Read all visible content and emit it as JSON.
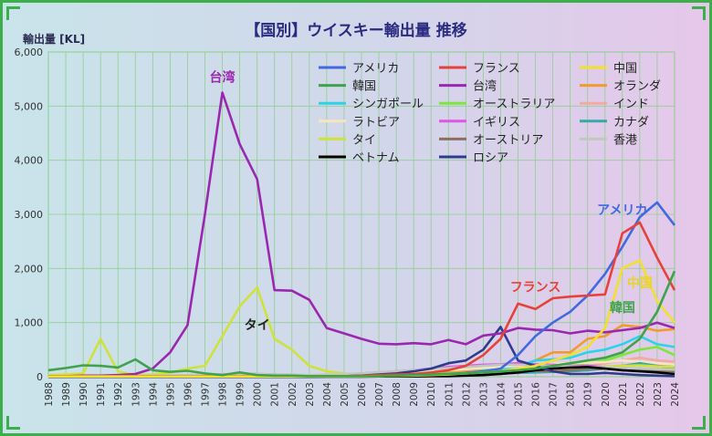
{
  "chart_data": {
    "type": "line",
    "title": "【国別】ウイスキー輸出量 推移",
    "ylabel": "輸出量 [KL]",
    "xlabel": "",
    "ylim": [
      0,
      6000
    ],
    "yticks": [
      0,
      1000,
      2000,
      3000,
      4000,
      5000,
      6000
    ],
    "ytick_labels": [
      "0",
      "1,000",
      "2,000",
      "3,000",
      "4,000",
      "5,000",
      "6,000"
    ],
    "grid": true,
    "legend_position": "top-right",
    "x": [
      "1988",
      "1989",
      "1990",
      "1991",
      "1992",
      "1993",
      "1994",
      "1995",
      "1996",
      "1997",
      "1998",
      "1999",
      "2000",
      "2001",
      "2002",
      "2003",
      "2004",
      "2005",
      "2006",
      "2007",
      "2008",
      "2009",
      "2010",
      "2011",
      "2012",
      "2013",
      "2014",
      "2015",
      "2016",
      "2017",
      "2018",
      "2019",
      "2020",
      "2021",
      "2022",
      "2023",
      "2024"
    ],
    "series": [
      {
        "name": "アメリカ",
        "color": "#4169e1",
        "values": [
          10,
          10,
          10,
          10,
          10,
          10,
          10,
          10,
          10,
          10,
          10,
          10,
          10,
          10,
          10,
          10,
          10,
          10,
          15,
          20,
          25,
          30,
          40,
          50,
          70,
          100,
          150,
          400,
          750,
          1000,
          1200,
          1500,
          1900,
          2400,
          2950,
          3220,
          2800
        ]
      },
      {
        "name": "フランス",
        "color": "#e8403a",
        "values": [
          10,
          10,
          10,
          10,
          10,
          10,
          10,
          10,
          10,
          10,
          10,
          10,
          10,
          10,
          10,
          10,
          10,
          10,
          20,
          30,
          40,
          50,
          80,
          120,
          200,
          400,
          700,
          1350,
          1250,
          1450,
          1480,
          1500,
          1520,
          2650,
          2850,
          2200,
          1600
        ]
      },
      {
        "name": "中国",
        "color": "#f2e02e",
        "values": [
          5,
          5,
          5,
          5,
          5,
          5,
          5,
          5,
          5,
          5,
          5,
          5,
          5,
          5,
          5,
          5,
          5,
          5,
          5,
          10,
          15,
          20,
          30,
          40,
          60,
          80,
          100,
          150,
          200,
          300,
          400,
          550,
          900,
          2000,
          2150,
          1400,
          1000
        ]
      },
      {
        "name": "韓国",
        "color": "#3fa34d",
        "values": [
          120,
          160,
          210,
          200,
          170,
          320,
          120,
          90,
          110,
          60,
          30,
          80,
          30,
          20,
          20,
          10,
          10,
          10,
          10,
          10,
          20,
          30,
          40,
          50,
          60,
          80,
          100,
          120,
          150,
          200,
          250,
          300,
          350,
          450,
          700,
          1200,
          1950
        ]
      },
      {
        "name": "台湾",
        "color": "#9b27b0",
        "values": [
          10,
          10,
          20,
          20,
          30,
          50,
          150,
          450,
          950,
          3000,
          5250,
          4300,
          3650,
          1600,
          1590,
          1420,
          900,
          800,
          700,
          610,
          600,
          620,
          600,
          680,
          600,
          760,
          800,
          900,
          870,
          860,
          800,
          850,
          820,
          860,
          900,
          1000,
          900
        ]
      },
      {
        "name": "オランダ",
        "color": "#f29a2e",
        "values": [
          5,
          5,
          5,
          5,
          5,
          5,
          5,
          5,
          5,
          5,
          5,
          5,
          5,
          5,
          5,
          10,
          20,
          30,
          40,
          50,
          60,
          70,
          80,
          90,
          100,
          120,
          150,
          200,
          300,
          450,
          450,
          700,
          750,
          950,
          920,
          850,
          880
        ]
      },
      {
        "name": "シンガポール",
        "color": "#2ad4e8",
        "values": [
          5,
          5,
          5,
          5,
          5,
          5,
          5,
          5,
          5,
          5,
          5,
          5,
          5,
          5,
          5,
          10,
          20,
          30,
          40,
          50,
          60,
          80,
          100,
          120,
          150,
          150,
          150,
          200,
          300,
          320,
          350,
          450,
          500,
          600,
          750,
          600,
          550
        ]
      },
      {
        "name": "オーストラリア",
        "color": "#7de83c",
        "values": [
          5,
          5,
          5,
          5,
          5,
          5,
          5,
          5,
          5,
          5,
          5,
          5,
          5,
          5,
          5,
          5,
          10,
          10,
          20,
          20,
          30,
          40,
          50,
          60,
          70,
          80,
          80,
          100,
          120,
          150,
          200,
          250,
          300,
          400,
          500,
          550,
          400
        ]
      },
      {
        "name": "インド",
        "color": "#f2a9a0",
        "values": [
          2,
          2,
          2,
          2,
          2,
          2,
          2,
          2,
          2,
          2,
          2,
          2,
          2,
          2,
          2,
          2,
          5,
          5,
          5,
          10,
          10,
          15,
          20,
          30,
          40,
          50,
          60,
          80,
          100,
          120,
          150,
          200,
          250,
          300,
          350,
          300,
          280
        ]
      },
      {
        "name": "ラトビア",
        "color": "#f5e6c0",
        "values": [
          2,
          2,
          2,
          2,
          2,
          2,
          2,
          2,
          2,
          2,
          2,
          2,
          2,
          2,
          2,
          2,
          5,
          10,
          20,
          40,
          60,
          80,
          100,
          120,
          140,
          160,
          180,
          200,
          220,
          240,
          250,
          260,
          270,
          300,
          280,
          250,
          220
        ]
      },
      {
        "name": "イギリス",
        "color": "#e055e8",
        "values": [
          10,
          10,
          10,
          10,
          10,
          10,
          10,
          10,
          20,
          30,
          40,
          50,
          50,
          40,
          30,
          20,
          30,
          40,
          60,
          80,
          100,
          120,
          150,
          180,
          200,
          220,
          230,
          250,
          230,
          220,
          200,
          200,
          180,
          200,
          220,
          200,
          180
        ]
      },
      {
        "name": "カナダ",
        "color": "#3aa8a8",
        "values": [
          2,
          2,
          2,
          2,
          2,
          2,
          2,
          2,
          2,
          2,
          2,
          2,
          2,
          2,
          2,
          2,
          5,
          5,
          10,
          10,
          15,
          20,
          25,
          30,
          40,
          50,
          60,
          70,
          80,
          90,
          100,
          120,
          150,
          200,
          250,
          200,
          150
        ]
      },
      {
        "name": "タイ",
        "color": "#cfe23a",
        "values": [
          30,
          40,
          60,
          700,
          100,
          30,
          40,
          80,
          150,
          200,
          750,
          1300,
          1650,
          700,
          500,
          200,
          100,
          60,
          40,
          30,
          30,
          30,
          40,
          50,
          60,
          80,
          100,
          120,
          130,
          150,
          160,
          170,
          180,
          200,
          210,
          190,
          180
        ]
      },
      {
        "name": "オーストリア",
        "color": "#8a7060",
        "values": [
          2,
          2,
          2,
          2,
          2,
          2,
          2,
          2,
          2,
          2,
          2,
          2,
          2,
          2,
          2,
          2,
          5,
          5,
          5,
          10,
          10,
          10,
          15,
          20,
          30,
          50,
          100,
          120,
          110,
          100,
          120,
          150,
          150,
          130,
          120,
          110,
          100
        ]
      },
      {
        "name": "香港",
        "color": "#c0c8c0",
        "values": [
          5,
          5,
          10,
          10,
          10,
          20,
          20,
          30,
          30,
          40,
          40,
          50,
          50,
          40,
          40,
          30,
          40,
          50,
          60,
          80,
          100,
          120,
          140,
          160,
          180,
          200,
          220,
          220,
          210,
          200,
          190,
          180,
          170,
          160,
          150,
          140,
          130
        ]
      },
      {
        "name": "ベトナム",
        "color": "#000000",
        "values": [
          2,
          2,
          2,
          2,
          2,
          2,
          2,
          2,
          2,
          2,
          2,
          2,
          2,
          2,
          2,
          2,
          2,
          2,
          2,
          5,
          5,
          5,
          10,
          10,
          20,
          30,
          50,
          80,
          120,
          150,
          170,
          180,
          150,
          120,
          100,
          80,
          50
        ]
      },
      {
        "name": "ロシア",
        "color": "#2e3c8c",
        "values": [
          2,
          2,
          2,
          2,
          2,
          2,
          2,
          2,
          2,
          2,
          2,
          2,
          2,
          2,
          2,
          2,
          5,
          10,
          20,
          40,
          60,
          100,
          150,
          250,
          300,
          500,
          920,
          300,
          200,
          100,
          50,
          50,
          70,
          50,
          30,
          20,
          10
        ]
      }
    ],
    "annotations": [
      {
        "text": "台湾",
        "x": "1998",
        "y": 5450,
        "color": "#9b27b0"
      },
      {
        "text": "タイ",
        "x": "2000",
        "y": 880,
        "color": "#222222"
      },
      {
        "text": "アメリカ",
        "x": "2021",
        "y": 3000,
        "color": "#4169e1"
      },
      {
        "text": "フランス",
        "x": "2016",
        "y": 1580,
        "color": "#e8403a"
      },
      {
        "text": "中国",
        "x": "2022",
        "y": 1650,
        "color": "#e8d42a"
      },
      {
        "text": "韓国",
        "x": "2021",
        "y": 1200,
        "color": "#3fa34d"
      }
    ]
  }
}
